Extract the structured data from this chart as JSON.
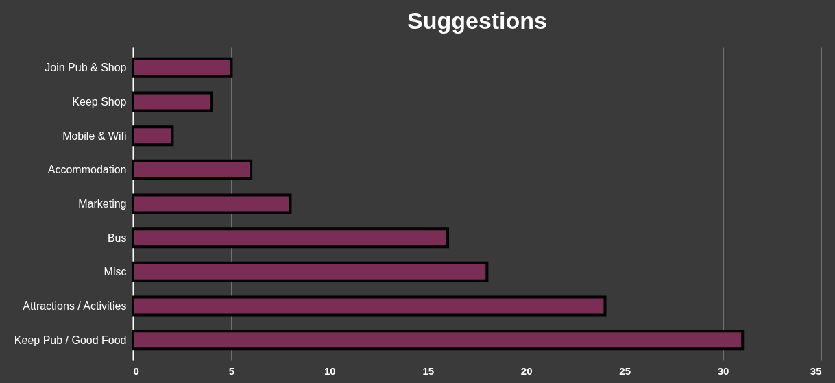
{
  "chart_data": {
    "type": "bar",
    "orientation": "horizontal",
    "title": "Suggestions",
    "categories": [
      "Join Pub & Shop",
      "Keep Shop",
      "Mobile & Wifi",
      "Accommodation",
      "Marketing",
      "Bus",
      "Misc",
      "Attractions / Activities",
      "Keep Pub / Good Food"
    ],
    "values": [
      5,
      4,
      2,
      6,
      8,
      16,
      18,
      24,
      31
    ],
    "color": "#7a2e55",
    "xlim": [
      0,
      35
    ],
    "xticks": [
      0,
      5,
      10,
      15,
      20,
      25,
      30,
      35
    ],
    "grid": "x"
  }
}
